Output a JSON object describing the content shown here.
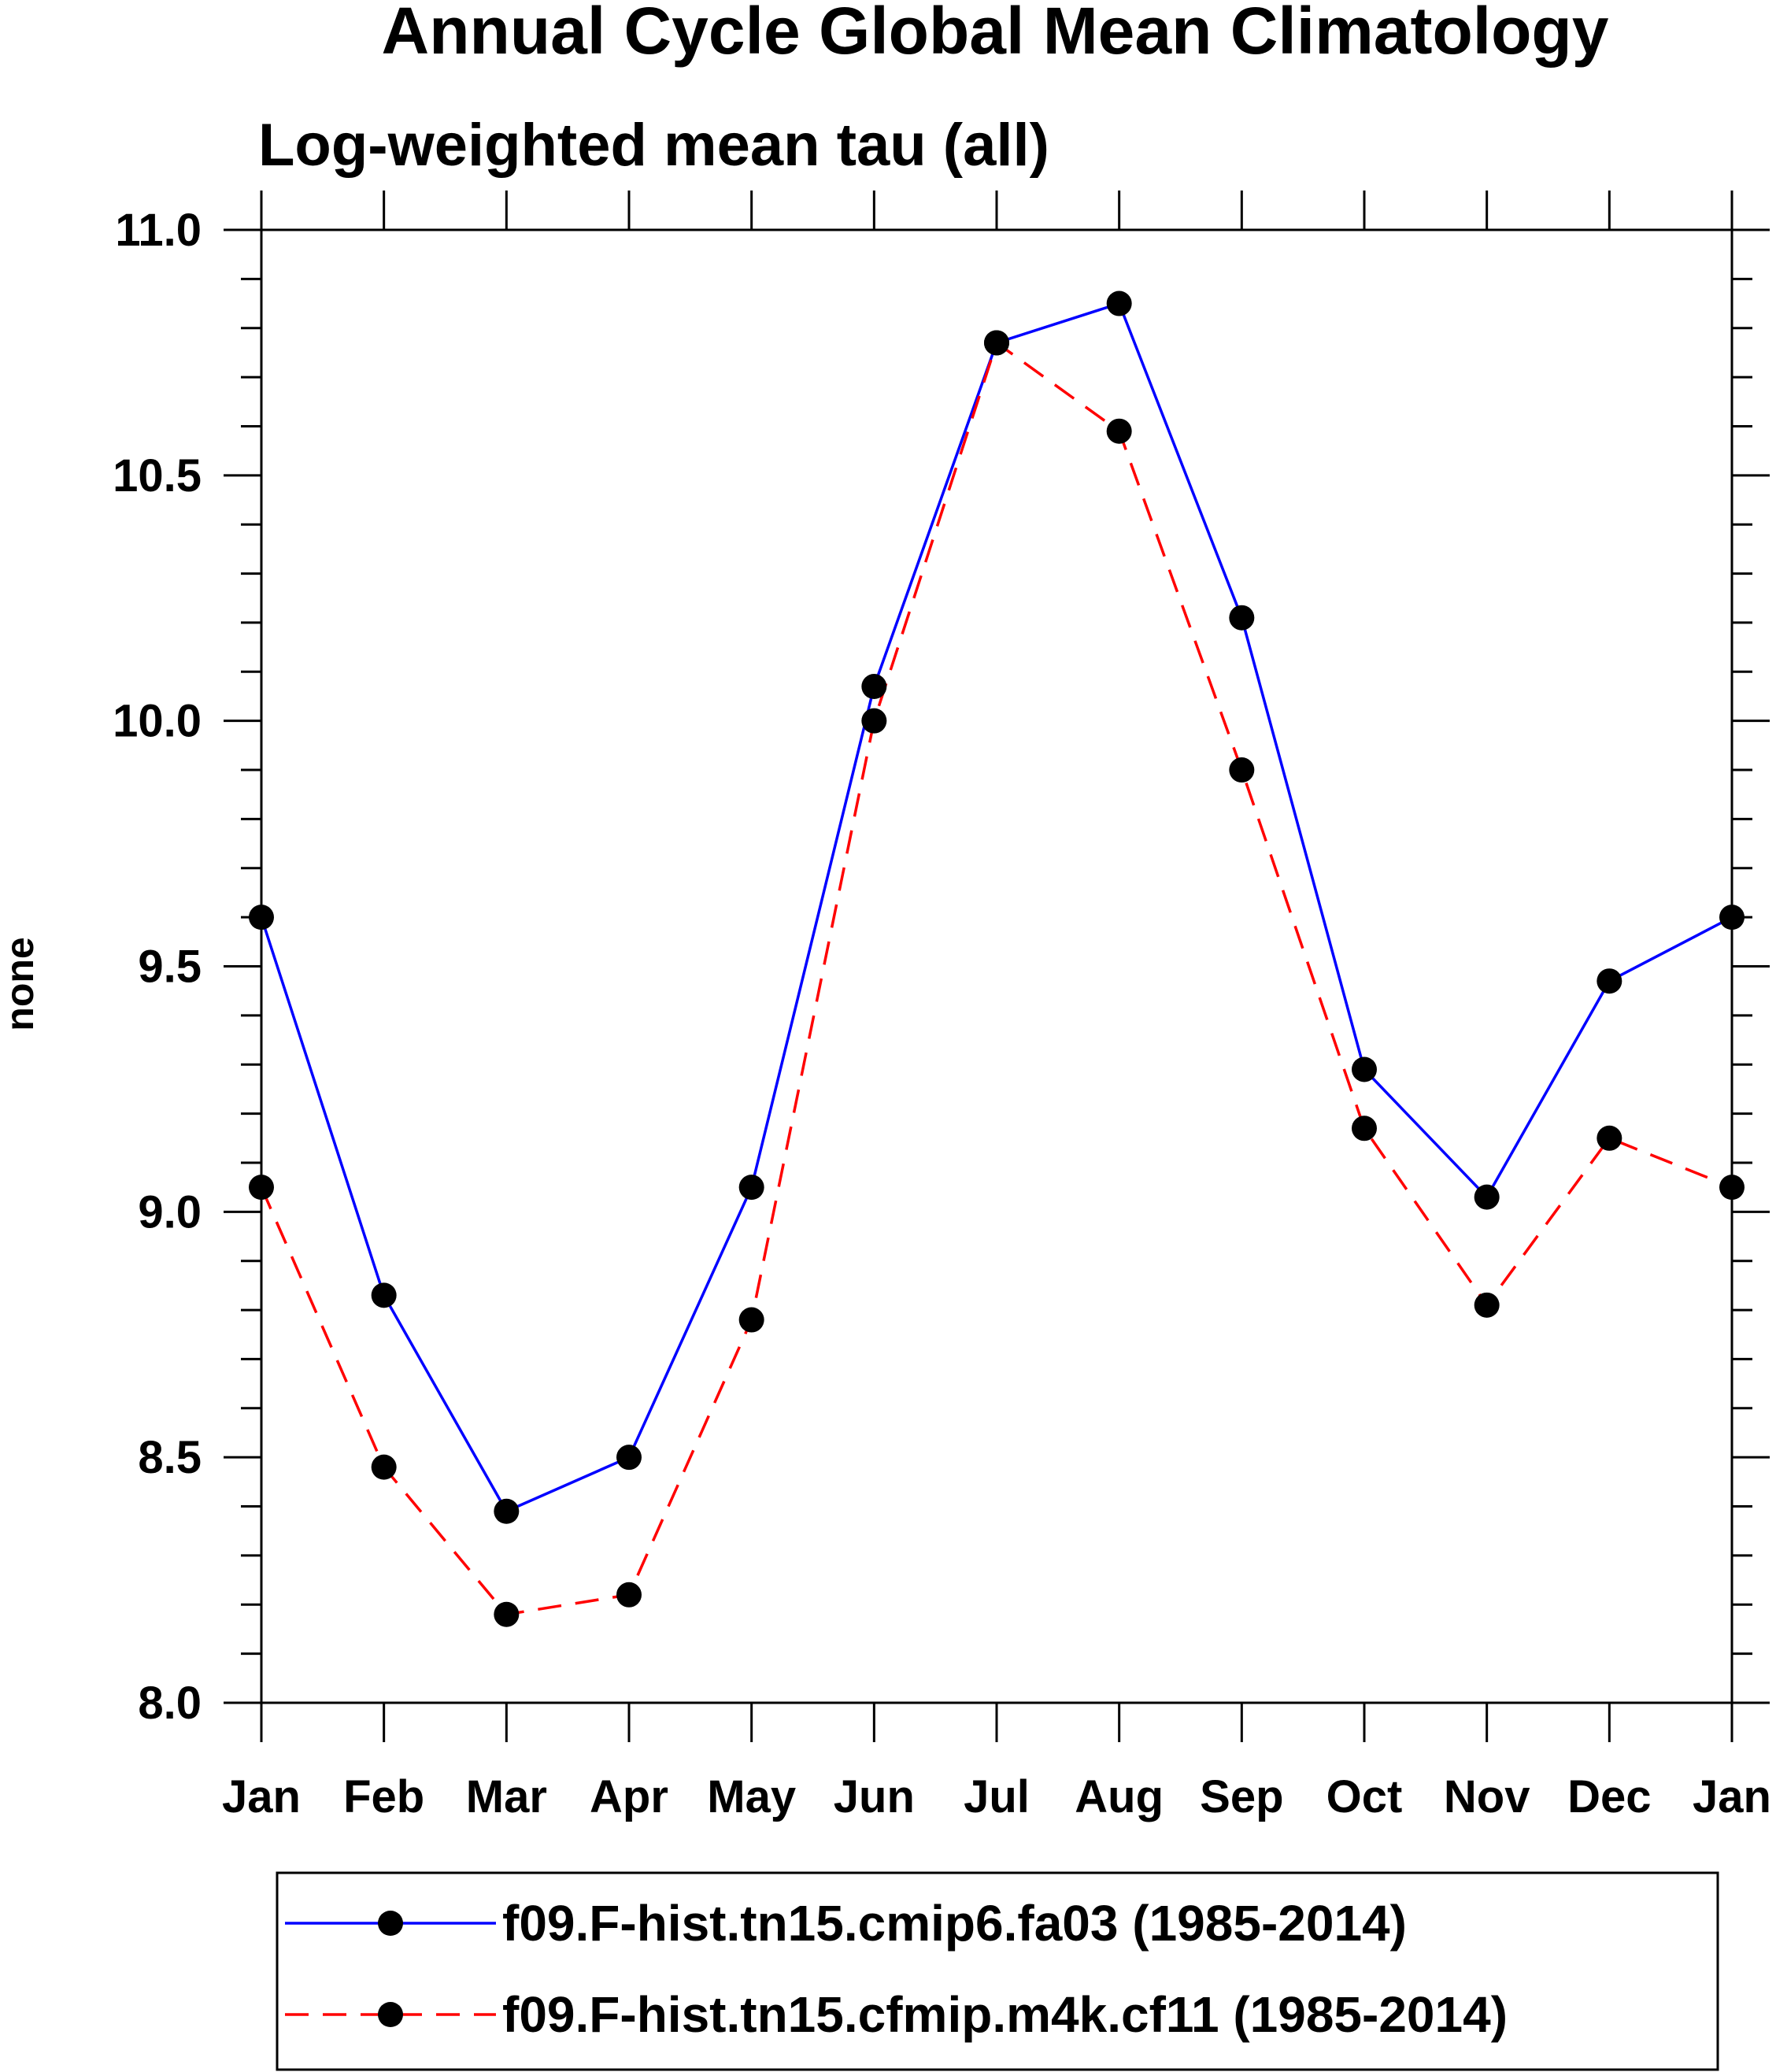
{
  "chart_data": {
    "type": "line",
    "title": "Annual Cycle Global Mean Climatology",
    "subtitle": "Log-weighted mean tau (all)",
    "xlabel": "",
    "ylabel": "none",
    "categories": [
      "Jan",
      "Feb",
      "Mar",
      "Apr",
      "May",
      "Jun",
      "Jul",
      "Aug",
      "Sep",
      "Oct",
      "Nov",
      "Dec",
      "Jan"
    ],
    "ylim": [
      8.0,
      11.0
    ],
    "yticks": [
      "8.0",
      "8.5",
      "9.0",
      "9.5",
      "10.0",
      "10.5",
      "11.0"
    ],
    "ytick_values": [
      8.0,
      8.5,
      9.0,
      9.5,
      10.0,
      10.5,
      11.0
    ],
    "yminor_step": 0.1,
    "grid": false,
    "legend_position": "bottom",
    "series": [
      {
        "name": "f09.F-hist.tn15.cmip6.fa03 (1985-2014)",
        "color": "#0000ff",
        "line_style": "solid",
        "marker": "filled-circle",
        "marker_color": "#000000",
        "values": [
          9.6,
          8.83,
          8.39,
          8.5,
          9.05,
          10.07,
          10.77,
          10.85,
          10.21,
          9.29,
          9.03,
          9.47,
          9.6
        ]
      },
      {
        "name": "f09.F-hist.tn15.cfmip.m4k.cf11 (1985-2014)",
        "color": "#ff0000",
        "line_style": "dashed",
        "marker": "filled-circle",
        "marker_color": "#000000",
        "values": [
          9.05,
          8.48,
          8.18,
          8.22,
          8.78,
          10.0,
          10.77,
          10.59,
          9.9,
          9.17,
          8.81,
          9.15,
          9.05
        ]
      }
    ]
  }
}
